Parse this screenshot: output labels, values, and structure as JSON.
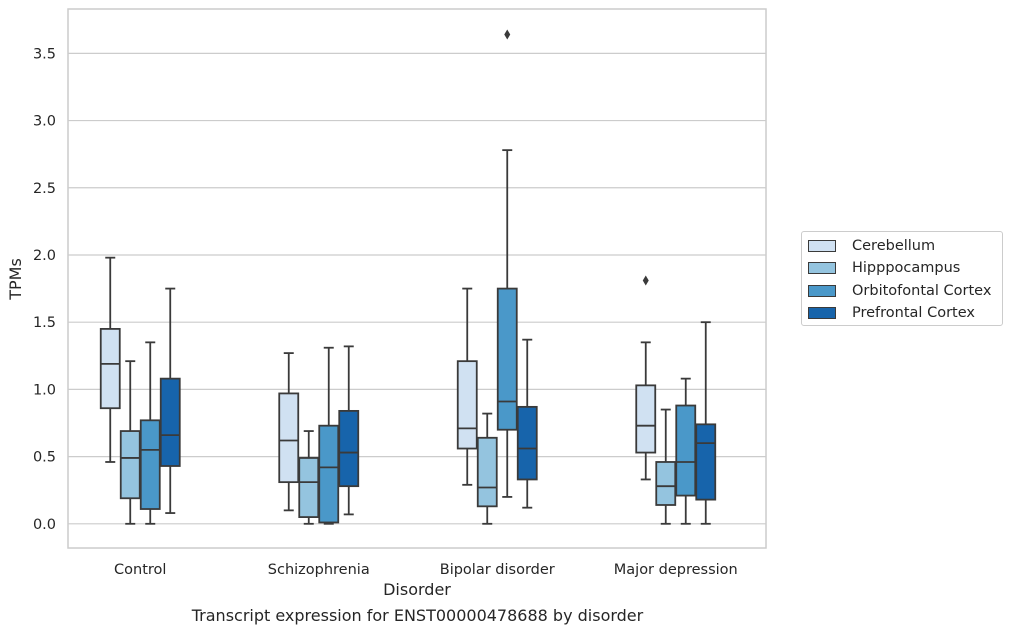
{
  "caption": "Transcript expression for ENST00000478688 by disorder",
  "chart_data": {
    "type": "box",
    "title": "",
    "xlabel": "Disorder",
    "ylabel": "TPMs",
    "ylim": [
      -0.18,
      3.83
    ],
    "yticks": [
      "0.0",
      "0.5",
      "1.0",
      "1.5",
      "2.0",
      "2.5",
      "3.0",
      "3.5"
    ],
    "grid": "horizontal",
    "legend_position": "center-right",
    "categories": [
      "Control",
      "Schizophrenia",
      "Bipolar disorder",
      "Major depression"
    ],
    "series": [
      {
        "name": "Cerebellum",
        "color": "#d0e1f2",
        "boxes": [
          {
            "whislo": 0.46,
            "q1": 0.86,
            "med": 1.19,
            "q3": 1.45,
            "whishi": 1.98,
            "fliers": []
          },
          {
            "whislo": 0.1,
            "q1": 0.31,
            "med": 0.62,
            "q3": 0.97,
            "whishi": 1.27,
            "fliers": []
          },
          {
            "whislo": 0.29,
            "q1": 0.56,
            "med": 0.71,
            "q3": 1.21,
            "whishi": 1.75,
            "fliers": []
          },
          {
            "whislo": 0.33,
            "q1": 0.53,
            "med": 0.73,
            "q3": 1.03,
            "whishi": 1.35,
            "fliers": [
              1.81
            ]
          }
        ]
      },
      {
        "name": "Hipppocampus",
        "color": "#94c4df",
        "boxes": [
          {
            "whislo": 0.0,
            "q1": 0.19,
            "med": 0.49,
            "q3": 0.69,
            "whishi": 1.21,
            "fliers": []
          },
          {
            "whislo": 0.0,
            "q1": 0.05,
            "med": 0.31,
            "q3": 0.49,
            "whishi": 0.69,
            "fliers": []
          },
          {
            "whislo": 0.0,
            "q1": 0.13,
            "med": 0.27,
            "q3": 0.64,
            "whishi": 0.82,
            "fliers": []
          },
          {
            "whislo": 0.0,
            "q1": 0.14,
            "med": 0.28,
            "q3": 0.46,
            "whishi": 0.85,
            "fliers": []
          }
        ]
      },
      {
        "name": "Orbitofontal Cortex",
        "color": "#4a98c9",
        "boxes": [
          {
            "whislo": 0.0,
            "q1": 0.11,
            "med": 0.55,
            "q3": 0.77,
            "whishi": 1.35,
            "fliers": []
          },
          {
            "whislo": 0.0,
            "q1": 0.01,
            "med": 0.42,
            "q3": 0.73,
            "whishi": 1.31,
            "fliers": []
          },
          {
            "whislo": 0.2,
            "q1": 0.7,
            "med": 0.91,
            "q3": 1.75,
            "whishi": 2.78,
            "fliers": [
              3.64
            ]
          },
          {
            "whislo": 0.0,
            "q1": 0.21,
            "med": 0.46,
            "q3": 0.88,
            "whishi": 1.08,
            "fliers": []
          }
        ]
      },
      {
        "name": "Prefrontal Cortex",
        "color": "#1764ab",
        "boxes": [
          {
            "whislo": 0.08,
            "q1": 0.43,
            "med": 0.66,
            "q3": 1.08,
            "whishi": 1.75,
            "fliers": []
          },
          {
            "whislo": 0.07,
            "q1": 0.28,
            "med": 0.53,
            "q3": 0.84,
            "whishi": 1.32,
            "fliers": []
          },
          {
            "whislo": 0.12,
            "q1": 0.33,
            "med": 0.56,
            "q3": 0.87,
            "whishi": 1.37,
            "fliers": []
          },
          {
            "whislo": 0.0,
            "q1": 0.18,
            "med": 0.6,
            "q3": 0.74,
            "whishi": 1.5,
            "fliers": []
          }
        ]
      }
    ]
  }
}
